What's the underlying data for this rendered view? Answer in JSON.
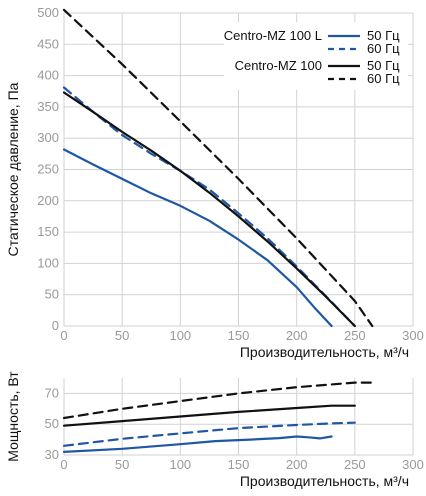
{
  "chart_data": [
    {
      "type": "line",
      "xlabel": "Производительность, м³/ч",
      "ylabel": "Статическое давление, Па",
      "xlim": [
        0,
        300
      ],
      "ylim": [
        0,
        500
      ],
      "xticks": [
        "0",
        "50",
        "100",
        "150",
        "200",
        "250",
        "300"
      ],
      "yticks": [
        "0",
        "50",
        "100",
        "150",
        "200",
        "250",
        "300",
        "350",
        "400",
        "450",
        "500"
      ],
      "grid": true,
      "legend_position": "top-right",
      "legend": {
        "groups": [
          {
            "model": "Centro-MZ 100 L",
            "entries": [
              "50 Гц",
              "60 Гц"
            ]
          },
          {
            "model": "Centro-MZ 100",
            "entries": [
              "50 Гц",
              "60 Гц"
            ]
          }
        ]
      },
      "series": [
        {
          "model": "Centro-MZ 100 L",
          "freq": "50 Гц",
          "color": "#1f57a4",
          "dash": "solid",
          "x": [
            0,
            25,
            50,
            75,
            100,
            125,
            150,
            175,
            200,
            215,
            230
          ],
          "y": [
            282,
            258,
            235,
            212,
            192,
            168,
            138,
            105,
            62,
            30,
            0
          ]
        },
        {
          "model": "Centro-MZ 100 L",
          "freq": "60 Гц",
          "color": "#1f57a4",
          "dash": "dashed",
          "x": [
            0,
            25,
            50,
            75,
            100,
            125,
            150,
            175,
            200,
            225,
            250
          ],
          "y": [
            381,
            342,
            305,
            275,
            248,
            218,
            180,
            140,
            95,
            48,
            0
          ]
        },
        {
          "model": "Centro-MZ 100",
          "freq": "50 Гц",
          "color": "#111111",
          "dash": "solid",
          "x": [
            0,
            25,
            50,
            75,
            100,
            125,
            150,
            175,
            200,
            225,
            250
          ],
          "y": [
            373,
            342,
            310,
            280,
            248,
            213,
            175,
            135,
            92,
            47,
            0
          ]
        },
        {
          "model": "Centro-MZ 100",
          "freq": "60 Гц",
          "color": "#111111",
          "dash": "dashed",
          "x": [
            0,
            50,
            100,
            150,
            200,
            250,
            265
          ],
          "y": [
            505,
            418,
            327,
            235,
            140,
            40,
            0
          ]
        }
      ]
    },
    {
      "type": "line",
      "xlabel": "Производительность, м³/ч",
      "ylabel": "Мощность, Вт",
      "xlim": [
        0,
        300
      ],
      "ylim": [
        30,
        80
      ],
      "xticks": [
        "0",
        "50",
        "100",
        "150",
        "200",
        "250",
        "300"
      ],
      "yticks": [
        "30",
        "50",
        "70"
      ],
      "grid": true,
      "series": [
        {
          "model": "Centro-MZ 100 L",
          "freq": "50 Гц",
          "color": "#1f57a4",
          "dash": "solid",
          "x": [
            0,
            50,
            100,
            130,
            160,
            185,
            200,
            210,
            220,
            230
          ],
          "y": [
            32,
            34,
            37,
            39,
            40,
            41,
            42,
            41.5,
            40.8,
            42
          ]
        },
        {
          "model": "Centro-MZ 100 L",
          "freq": "60 Гц",
          "color": "#1f57a4",
          "dash": "dashed",
          "x": [
            0,
            50,
            100,
            150,
            200,
            230,
            250
          ],
          "y": [
            36,
            40.5,
            44,
            47.5,
            49.5,
            50.5,
            51
          ]
        },
        {
          "model": "Centro-MZ 100",
          "freq": "50 Гц",
          "color": "#111111",
          "dash": "solid",
          "x": [
            0,
            50,
            100,
            150,
            200,
            230,
            250
          ],
          "y": [
            49,
            52,
            55,
            58,
            60.5,
            62,
            62
          ]
        },
        {
          "model": "Centro-MZ 100",
          "freq": "60 Гц",
          "color": "#111111",
          "dash": "dashed",
          "x": [
            0,
            50,
            100,
            150,
            200,
            250,
            265
          ],
          "y": [
            54,
            60,
            65,
            70,
            74,
            77,
            77
          ]
        }
      ]
    }
  ]
}
